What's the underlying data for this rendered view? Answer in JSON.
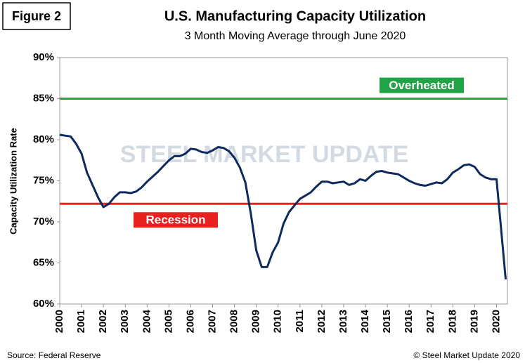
{
  "chart_data": {
    "type": "line",
    "figure_label": "Figure 2",
    "title": "U.S. Manufacturing  Capacity Utilization",
    "subtitle": "3 Month Moving Average through June 2020",
    "ylabel": "Capacity Utilization Rate",
    "source": "Source: Federal Reserve",
    "copyright": "© Steel Market Update 2020",
    "watermark": "STEEL MARKET UPDATE",
    "xlim": [
      2000,
      2020.5
    ],
    "xticks": [
      2000,
      2001,
      2002,
      2003,
      2004,
      2005,
      2006,
      2007,
      2008,
      2009,
      2010,
      2011,
      2012,
      2013,
      2014,
      2015,
      2016,
      2017,
      2018,
      2019,
      2020
    ],
    "ylim": [
      60,
      90
    ],
    "yticks": [
      {
        "value": 60,
        "label": "60%"
      },
      {
        "value": 65,
        "label": "65%"
      },
      {
        "value": 70,
        "label": "70%"
      },
      {
        "value": 75,
        "label": "75%"
      },
      {
        "value": 80,
        "label": "80%"
      },
      {
        "value": 85,
        "label": "85%"
      },
      {
        "value": 90,
        "label": "90%"
      }
    ],
    "x": [
      2000,
      2000.25,
      2000.5,
      2000.75,
      2001,
      2001.25,
      2001.5,
      2001.75,
      2002,
      2002.25,
      2002.5,
      2002.75,
      2003,
      2003.25,
      2003.5,
      2003.75,
      2004,
      2004.25,
      2004.5,
      2004.75,
      2005,
      2005.25,
      2005.5,
      2005.75,
      2006,
      2006.25,
      2006.5,
      2006.75,
      2007,
      2007.25,
      2007.5,
      2007.75,
      2008,
      2008.25,
      2008.5,
      2008.75,
      2009,
      2009.25,
      2009.5,
      2009.75,
      2010,
      2010.25,
      2010.5,
      2010.75,
      2011,
      2011.25,
      2011.5,
      2011.75,
      2012,
      2012.25,
      2012.5,
      2012.75,
      2013,
      2013.25,
      2013.5,
      2013.75,
      2014,
      2014.25,
      2014.5,
      2014.75,
      2015,
      2015.25,
      2015.5,
      2015.75,
      2016,
      2016.25,
      2016.5,
      2016.75,
      2017,
      2017.25,
      2017.5,
      2017.75,
      2018,
      2018.25,
      2018.5,
      2018.75,
      2019,
      2019.25,
      2019.5,
      2019.75,
      2020,
      2020.25,
      2020.42
    ],
    "series": [
      {
        "color": "#0f2a5e",
        "values": [
          80.6,
          80.5,
          80.4,
          79.5,
          78.3,
          76.0,
          74.5,
          73.0,
          71.8,
          72.2,
          73.0,
          73.6,
          73.6,
          73.5,
          73.7,
          74.2,
          74.9,
          75.5,
          76.1,
          76.8,
          77.5,
          78.0,
          78.0,
          78.3,
          78.9,
          78.8,
          78.5,
          78.4,
          78.7,
          79.1,
          79.0,
          78.6,
          77.8,
          76.6,
          74.8,
          71.0,
          66.5,
          64.5,
          64.5,
          66.3,
          67.5,
          69.8,
          71.2,
          72.0,
          72.8,
          73.2,
          73.6,
          74.3,
          74.9,
          74.9,
          74.7,
          74.8,
          74.9,
          74.5,
          74.7,
          75.2,
          75.0,
          75.6,
          76.1,
          76.2,
          76.0,
          75.9,
          75.8,
          75.4,
          75.0,
          74.7,
          74.5,
          74.4,
          74.6,
          74.8,
          74.7,
          75.2,
          76.0,
          76.4,
          76.9,
          77.0,
          76.7,
          75.8,
          75.4,
          75.2,
          75.2,
          68.0,
          63.0
        ]
      }
    ],
    "reference_lines": [
      {
        "label": "Overheated",
        "value": 85,
        "color": "#21a446"
      },
      {
        "label": "Recession",
        "value": 72.2,
        "color": "#e8201e"
      }
    ]
  }
}
